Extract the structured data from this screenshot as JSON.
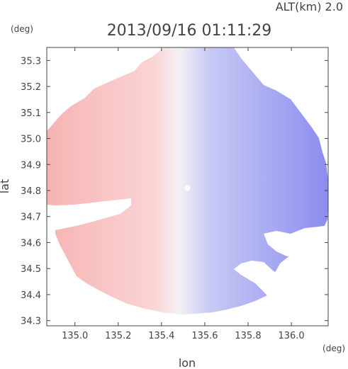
{
  "header": {
    "alt_label": "ALT(km) 2.0",
    "timestamp": "2013/09/16 01:11:29"
  },
  "chart_data": {
    "type": "heatmap",
    "title": "2013/09/16 01:11:29",
    "subtitle": "ALT(km) 2.0",
    "xlabel": "lon",
    "ylabel": "lat",
    "x_unit": "(deg)",
    "y_unit": "(deg)",
    "xlim": [
      134.87,
      136.17
    ],
    "ylim": [
      34.28,
      35.35
    ],
    "x_ticks": [
      135.0,
      135.2,
      135.4,
      135.6,
      135.8,
      136.0
    ],
    "x_tick_labels": [
      "135.0",
      "135.2",
      "135.4",
      "135.6",
      "135.8",
      "136.0"
    ],
    "y_ticks": [
      34.3,
      34.4,
      34.5,
      34.6,
      34.7,
      34.8,
      34.9,
      35.0,
      35.1,
      35.2,
      35.3
    ],
    "y_tick_labels": [
      "34.3",
      "34.4",
      "34.5",
      "34.6",
      "34.7",
      "34.8",
      "34.9",
      "35.0",
      "35.1",
      "35.2",
      "35.3"
    ],
    "radar_center": {
      "lon": 135.52,
      "lat": 34.81
    },
    "colors": {
      "west": "#f6b3b3",
      "east": "#8c8cf0",
      "mid": "#f4f0f6"
    },
    "grid": false,
    "legend": "none"
  }
}
